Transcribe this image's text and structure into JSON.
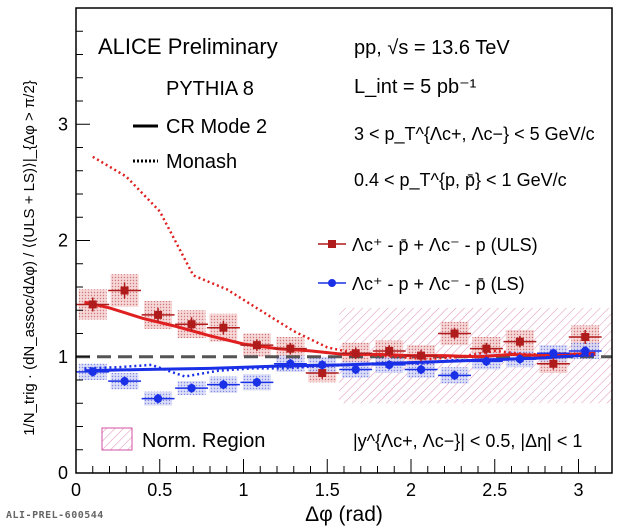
{
  "chart_data": {
    "type": "scatter",
    "xlabel": "Δφ (rad)",
    "ylabel": "1/N_trig · (dN_assoc/dΔφ) / ⟨(ULS + LS)⟩|_{Δφ > π/2}",
    "xlim": [
      0,
      3.2
    ],
    "ylim": [
      0,
      4.0
    ],
    "x_ticks": [
      "0",
      "0.5",
      "1",
      "1.5",
      "2",
      "2.5",
      "3"
    ],
    "y_ticks": [
      "0",
      "1",
      "2",
      "3"
    ],
    "reference_line_y": 1,
    "colors": {
      "uls": "#b01c1c",
      "ls": "#1a30e6",
      "norm_region": "#e8a0c0",
      "uls_model": "#e02020",
      "ls_model": "#1a30e6"
    },
    "labels": {
      "preliminary": "ALICE Preliminary",
      "generator": "PYTHIA 8",
      "model_solid": "CR Mode 2",
      "model_dotted": "Monash",
      "system": "pp,  √s = 13.6 TeV",
      "lumi": "L_int = 5 pb⁻¹",
      "pt_lambda": "3 < p_T^{Λc+, Λc−} < 5 GeV/c",
      "pt_proton": "0.4 < p_T^{p, p̄} < 1 GeV/c",
      "uls_legend": "Λc⁺ - p̄  +  Λc⁻ - p (ULS)",
      "ls_legend": "Λc⁺ - p  +  Λc⁻ - p̄ (LS)",
      "norm_region": "Norm. Region",
      "cuts": "|y^{Λc+, Λc−}| < 0.5, |Δη| < 1"
    },
    "norm_region_x": [
      1.57,
      3.2
    ],
    "norm_region_y": [
      0.6,
      1.42
    ],
    "series": [
      {
        "name": "Λc⁺ - p̄  +  Λc⁻ - p (ULS)",
        "x": [
          0.1,
          0.29,
          0.49,
          0.69,
          0.88,
          1.08,
          1.28,
          1.47,
          1.67,
          1.87,
          2.06,
          2.26,
          2.45,
          2.65,
          2.85,
          3.04
        ],
        "y": [
          1.45,
          1.57,
          1.36,
          1.28,
          1.25,
          1.1,
          1.07,
          0.86,
          1.03,
          1.05,
          1.01,
          1.2,
          1.07,
          1.13,
          0.94,
          1.17
        ],
        "stat_err": [
          0.06,
          0.07,
          0.06,
          0.06,
          0.06,
          0.05,
          0.05,
          0.05,
          0.05,
          0.05,
          0.05,
          0.05,
          0.05,
          0.05,
          0.05,
          0.06
        ],
        "syst_err": [
          0.13,
          0.14,
          0.12,
          0.12,
          0.12,
          0.1,
          0.1,
          0.08,
          0.09,
          0.09,
          0.09,
          0.1,
          0.1,
          0.1,
          0.08,
          0.1
        ]
      },
      {
        "name": "Λc⁺ - p  +  Λc⁻ - p̄ (LS)",
        "x": [
          0.1,
          0.29,
          0.49,
          0.69,
          0.88,
          1.08,
          1.28,
          1.47,
          1.67,
          1.87,
          2.06,
          2.26,
          2.45,
          2.65,
          2.85,
          3.04
        ],
        "y": [
          0.87,
          0.79,
          0.64,
          0.73,
          0.76,
          0.78,
          0.94,
          0.93,
          0.89,
          0.93,
          0.89,
          0.84,
          0.96,
          0.98,
          1.03,
          1.05
        ],
        "stat_err": [
          0.04,
          0.04,
          0.04,
          0.04,
          0.04,
          0.04,
          0.04,
          0.04,
          0.04,
          0.04,
          0.04,
          0.04,
          0.04,
          0.04,
          0.04,
          0.04
        ],
        "syst_err": [
          0.07,
          0.07,
          0.06,
          0.06,
          0.07,
          0.07,
          0.07,
          0.07,
          0.07,
          0.07,
          0.07,
          0.07,
          0.07,
          0.07,
          0.07,
          0.07
        ]
      },
      {
        "name": "CR Mode 2 (ULS)",
        "x": [
          0.05,
          0.2,
          0.4,
          0.6,
          0.8,
          1.0,
          1.2,
          1.4,
          1.6,
          1.8,
          2.0,
          2.2,
          2.4,
          2.6,
          2.8,
          3.1
        ],
        "y": [
          1.47,
          1.42,
          1.33,
          1.26,
          1.18,
          1.11,
          1.07,
          1.05,
          1.02,
          1.02,
          1.01,
          1.01,
          1.0,
          1.02,
          1.01,
          1.03
        ]
      },
      {
        "name": "CR Mode 2 (LS)",
        "x": [
          0.05,
          0.4,
          0.8,
          1.2,
          1.6,
          2.0,
          2.4,
          2.8,
          3.1
        ],
        "y": [
          0.88,
          0.89,
          0.9,
          0.92,
          0.93,
          0.95,
          0.97,
          0.99,
          1.02
        ]
      },
      {
        "name": "Monash (ULS)",
        "x": [
          0.1,
          0.3,
          0.5,
          0.7,
          0.9,
          1.1,
          1.3,
          1.5,
          1.7,
          1.9,
          2.1,
          2.3,
          2.5,
          2.7,
          2.9,
          3.1
        ],
        "y": [
          2.72,
          2.55,
          2.25,
          1.7,
          1.58,
          1.4,
          1.22,
          1.08,
          1.02,
          1.0,
          0.98,
          1.0,
          1.05,
          1.02,
          1.03,
          1.02
        ]
      },
      {
        "name": "Monash (LS)",
        "x": [
          0.05,
          0.25,
          0.45,
          0.65,
          0.85,
          1.05,
          1.25,
          1.45,
          1.65,
          1.85,
          2.05,
          2.25,
          2.45,
          2.65,
          2.85,
          3.1
        ],
        "y": [
          0.9,
          0.91,
          0.93,
          0.83,
          0.88,
          0.9,
          0.9,
          0.92,
          0.93,
          0.95,
          0.94,
          0.97,
          0.97,
          0.98,
          1.0,
          1.01
        ]
      }
    ]
  },
  "watermark": "ALI-PREL-600544"
}
